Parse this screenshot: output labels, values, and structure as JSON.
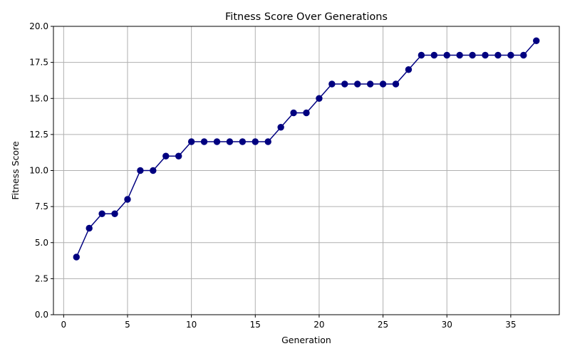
{
  "chart_data": {
    "type": "line",
    "title": "Fitness Score Over Generations",
    "xlabel": "Generation",
    "ylabel": "Fitness Score",
    "xlim": [
      -0.8,
      38.8
    ],
    "ylim": [
      0,
      20
    ],
    "xticks": [
      0,
      5,
      10,
      15,
      20,
      25,
      30,
      35
    ],
    "xtick_labels": [
      "0",
      "5",
      "10",
      "15",
      "20",
      "25",
      "30",
      "35"
    ],
    "yticks": [
      0,
      2.5,
      5,
      7.5,
      10,
      12.5,
      15,
      17.5,
      20
    ],
    "ytick_labels": [
      "0.0",
      "2.5",
      "5.0",
      "7.5",
      "10.0",
      "12.5",
      "15.0",
      "17.5",
      "20.0"
    ],
    "grid": true,
    "legend": "none",
    "series": [
      {
        "color": "#000080",
        "marker": "circle",
        "x": [
          1,
          2,
          3,
          4,
          5,
          6,
          7,
          8,
          9,
          10,
          11,
          12,
          13,
          14,
          15,
          16,
          17,
          18,
          19,
          20,
          21,
          22,
          23,
          24,
          25,
          26,
          27,
          28,
          29,
          30,
          31,
          32,
          33,
          34,
          35,
          36,
          37
        ],
        "y": [
          4,
          6,
          7,
          7,
          8,
          10,
          10,
          11,
          11,
          12,
          12,
          12,
          12,
          12,
          12,
          12,
          13,
          14,
          14,
          15,
          16,
          16,
          16,
          16,
          16,
          16,
          17,
          18,
          18,
          18,
          18,
          18,
          18,
          18,
          18,
          18,
          19
        ]
      }
    ]
  }
}
